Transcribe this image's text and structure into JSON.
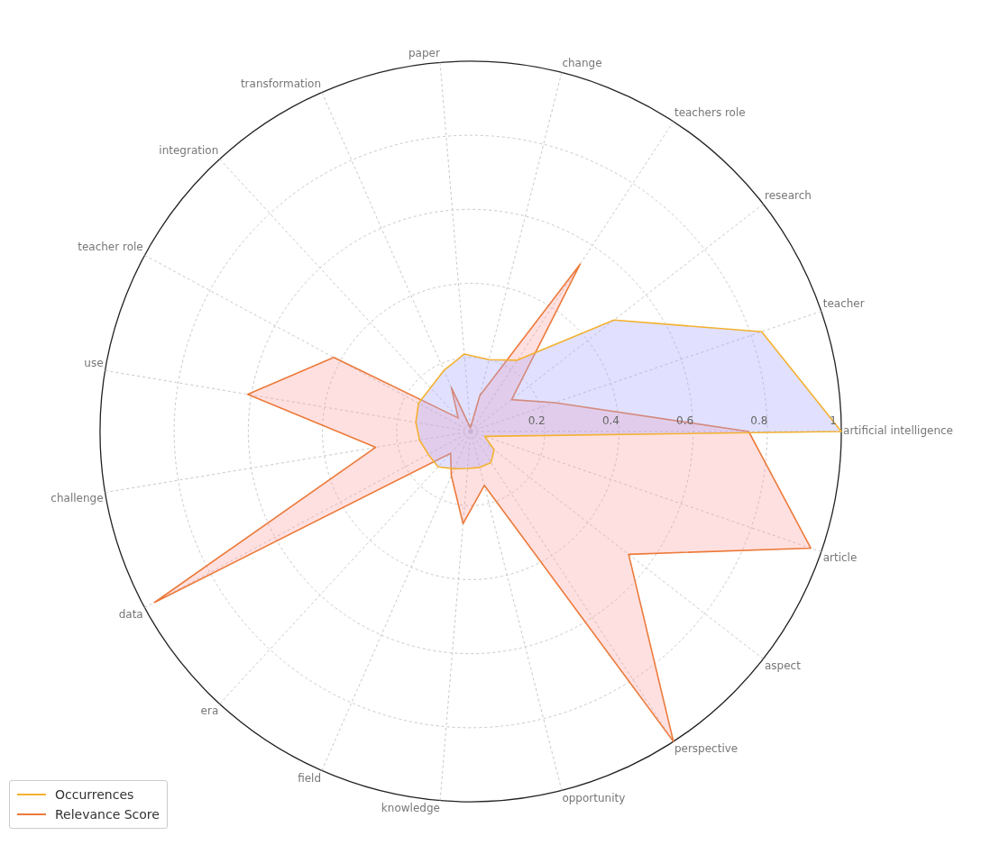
{
  "chart_data": {
    "type": "radar",
    "categories": [
      "change",
      "teachers role",
      "research",
      "teacher",
      "artificial intelligence",
      "article",
      "aspect",
      "perspective",
      "opportunity",
      "knowledge",
      "field",
      "era",
      "data",
      "challenge",
      "use",
      "teacher role",
      "integration",
      "transformation",
      "paper"
    ],
    "series": [
      {
        "name": "Occurrences",
        "color": "#f4b130",
        "values": [
          0.2,
          0.23,
          0.49,
          0.83,
          1.0,
          0.04,
          0.08,
          0.1,
          0.1,
          0.1,
          0.11,
          0.13,
          0.13,
          0.14,
          0.15,
          0.16,
          0.16,
          0.18,
          0.21
        ]
      },
      {
        "name": "Relevance Score",
        "color": "#ec7a3a",
        "values": [
          0.1,
          0.54,
          0.14,
          0.24,
          0.75,
          0.97,
          0.54,
          1.0,
          0.15,
          0.25,
          0.13,
          0.08,
          0.97,
          0.26,
          0.61,
          0.42,
          0.05,
          0.13,
          0.01
        ]
      }
    ],
    "ylim": [
      0,
      1
    ],
    "yticks": [
      0.2,
      0.4,
      0.6,
      0.8,
      1
    ],
    "grid": true,
    "legend": "bottom left",
    "marker": "none"
  }
}
